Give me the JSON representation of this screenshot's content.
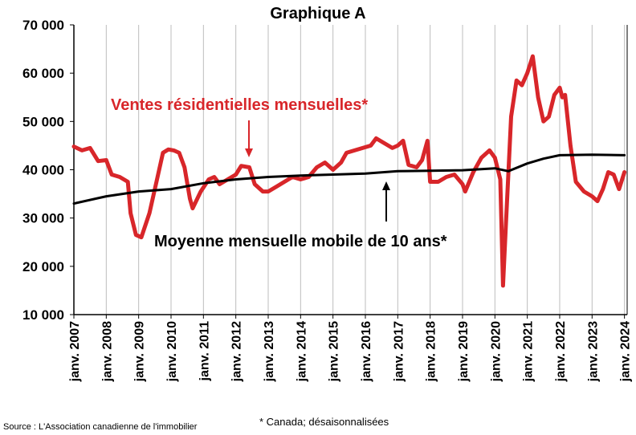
{
  "chart_data": {
    "type": "line",
    "title": "Graphique A",
    "ylim": [
      10000,
      70000
    ],
    "yticks": [
      10000,
      20000,
      30000,
      40000,
      50000,
      60000,
      70000
    ],
    "ytick_labels": [
      "10 000",
      "20 000",
      "30 000",
      "40 000",
      "50 000",
      "60 000",
      "70 000"
    ],
    "xticks": [
      "janv. 2007",
      "janv. 2008",
      "janv. 2009",
      "janv. 2010",
      "janv. 2011",
      "janv. 2012",
      "janv. 2013",
      "janv. 2014",
      "janv. 2015",
      "janv. 2016",
      "janv. 2017",
      "janv. 2018",
      "janv. 2019",
      "janv. 2020",
      "janv. 2021",
      "janv. 2022",
      "janv. 2023",
      "janv. 2024"
    ],
    "grid": "vertical",
    "colors": {
      "sales": "#d8262a",
      "average": "#000000"
    },
    "series": [
      {
        "name": "Ventes résidentielles mensuelles*",
        "points": [
          [
            "2007-01",
            44800
          ],
          [
            "2007-04",
            44000
          ],
          [
            "2007-07",
            44500
          ],
          [
            "2007-10",
            41800
          ],
          [
            "2008-01",
            42000
          ],
          [
            "2008-03",
            39000
          ],
          [
            "2008-06",
            38500
          ],
          [
            "2008-09",
            37500
          ],
          [
            "2008-10",
            31000
          ],
          [
            "2008-12",
            26500
          ],
          [
            "2009-02",
            26000
          ],
          [
            "2009-05",
            31000
          ],
          [
            "2009-08",
            38500
          ],
          [
            "2009-10",
            43500
          ],
          [
            "2009-12",
            44200
          ],
          [
            "2010-02",
            44000
          ],
          [
            "2010-04",
            43500
          ],
          [
            "2010-06",
            40500
          ],
          [
            "2010-08",
            34000
          ],
          [
            "2010-09",
            32000
          ],
          [
            "2010-12",
            35500
          ],
          [
            "2011-03",
            38000
          ],
          [
            "2011-05",
            38500
          ],
          [
            "2011-07",
            37000
          ],
          [
            "2011-10",
            38000
          ],
          [
            "2012-01",
            39000
          ],
          [
            "2012-03",
            40800
          ],
          [
            "2012-06",
            40500
          ],
          [
            "2012-08",
            37000
          ],
          [
            "2012-11",
            35500
          ],
          [
            "2013-01",
            35500
          ],
          [
            "2013-04",
            36500
          ],
          [
            "2013-07",
            37500
          ],
          [
            "2013-10",
            38500
          ],
          [
            "2014-01",
            38000
          ],
          [
            "2014-04",
            38500
          ],
          [
            "2014-07",
            40500
          ],
          [
            "2014-10",
            41500
          ],
          [
            "2015-01",
            40000
          ],
          [
            "2015-04",
            41500
          ],
          [
            "2015-06",
            43500
          ],
          [
            "2015-09",
            44000
          ],
          [
            "2015-12",
            44500
          ],
          [
            "2016-03",
            45000
          ],
          [
            "2016-05",
            46500
          ],
          [
            "2016-08",
            45500
          ],
          [
            "2016-11",
            44500
          ],
          [
            "2017-01",
            45000
          ],
          [
            "2017-03",
            46000
          ],
          [
            "2017-05",
            41000
          ],
          [
            "2017-08",
            40500
          ],
          [
            "2017-10",
            42000
          ],
          [
            "2017-12",
            46000
          ],
          [
            "2018-01",
            37500
          ],
          [
            "2018-04",
            37500
          ],
          [
            "2018-07",
            38500
          ],
          [
            "2018-10",
            39000
          ],
          [
            "2019-01",
            37000
          ],
          [
            "2019-02",
            35500
          ],
          [
            "2019-05",
            39500
          ],
          [
            "2019-08",
            42500
          ],
          [
            "2019-11",
            44000
          ],
          [
            "2020-01",
            42500
          ],
          [
            "2020-03",
            38000
          ],
          [
            "2020-04",
            16000
          ],
          [
            "2020-05",
            28000
          ],
          [
            "2020-07",
            51000
          ],
          [
            "2020-09",
            58500
          ],
          [
            "2020-11",
            57500
          ],
          [
            "2021-01",
            60000
          ],
          [
            "2021-03",
            63500
          ],
          [
            "2021-05",
            55000
          ],
          [
            "2021-07",
            50000
          ],
          [
            "2021-09",
            51000
          ],
          [
            "2021-11",
            55500
          ],
          [
            "2022-01",
            57000
          ],
          [
            "2022-02",
            55000
          ],
          [
            "2022-03",
            55500
          ],
          [
            "2022-05",
            45000
          ],
          [
            "2022-07",
            37500
          ],
          [
            "2022-10",
            35500
          ],
          [
            "2023-01",
            34500
          ],
          [
            "2023-03",
            33500
          ],
          [
            "2023-05",
            36000
          ],
          [
            "2023-07",
            39500
          ],
          [
            "2023-09",
            39000
          ],
          [
            "2023-11",
            36000
          ],
          [
            "2024-01",
            39500
          ]
        ]
      },
      {
        "name": "Moyenne mensuelle mobile de 10 ans*",
        "points": [
          [
            "2007-01",
            33000
          ],
          [
            "2008-01",
            34500
          ],
          [
            "2009-01",
            35500
          ],
          [
            "2010-01",
            36000
          ],
          [
            "2011-01",
            37200
          ],
          [
            "2012-01",
            38000
          ],
          [
            "2013-01",
            38500
          ],
          [
            "2014-01",
            38800
          ],
          [
            "2015-01",
            39000
          ],
          [
            "2016-01",
            39200
          ],
          [
            "2017-01",
            39700
          ],
          [
            "2018-01",
            39800
          ],
          [
            "2019-01",
            39900
          ],
          [
            "2020-01",
            40300
          ],
          [
            "2020-06",
            39700
          ],
          [
            "2021-01",
            41300
          ],
          [
            "2021-07",
            42300
          ],
          [
            "2022-01",
            43000
          ],
          [
            "2023-01",
            43100
          ],
          [
            "2024-01",
            43000
          ]
        ]
      }
    ]
  },
  "footnote_source": "Source : L'Association canadienne de l'immobilier",
  "footnote_note": "* Canada; désaisonnalisées"
}
